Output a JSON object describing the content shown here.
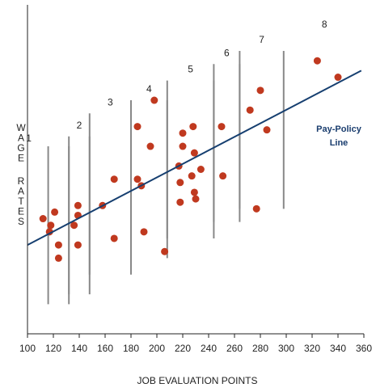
{
  "chart_data": {
    "type": "scatter",
    "xlabel": "JOB EVALUATION POINTS",
    "ylabel": "WAGE RATES",
    "xlim": [
      100,
      360
    ],
    "x_ticks": [
      100,
      120,
      140,
      160,
      180,
      200,
      220,
      240,
      260,
      280,
      300,
      320,
      340,
      360
    ],
    "ylim": [
      0,
      100
    ],
    "colors": {
      "points": "#c0391f",
      "policy_line": "#163f70",
      "grade_bars": "#888888",
      "axes": "#222222"
    },
    "points": [
      {
        "x": 112,
        "y": 35
      },
      {
        "x": 117,
        "y": 31
      },
      {
        "x": 118,
        "y": 33
      },
      {
        "x": 121,
        "y": 37
      },
      {
        "x": 124,
        "y": 27
      },
      {
        "x": 124,
        "y": 23
      },
      {
        "x": 136,
        "y": 33
      },
      {
        "x": 139,
        "y": 39
      },
      {
        "x": 139,
        "y": 36
      },
      {
        "x": 139,
        "y": 27
      },
      {
        "x": 158,
        "y": 39
      },
      {
        "x": 167,
        "y": 47
      },
      {
        "x": 167,
        "y": 29
      },
      {
        "x": 185,
        "y": 47
      },
      {
        "x": 185,
        "y": 63
      },
      {
        "x": 188,
        "y": 45
      },
      {
        "x": 190,
        "y": 31
      },
      {
        "x": 195,
        "y": 57
      },
      {
        "x": 198,
        "y": 71
      },
      {
        "x": 206,
        "y": 25
      },
      {
        "x": 217,
        "y": 51
      },
      {
        "x": 218,
        "y": 46
      },
      {
        "x": 218,
        "y": 40
      },
      {
        "x": 220,
        "y": 61
      },
      {
        "x": 220,
        "y": 57
      },
      {
        "x": 227,
        "y": 48
      },
      {
        "x": 228,
        "y": 63
      },
      {
        "x": 229,
        "y": 55
      },
      {
        "x": 229,
        "y": 43
      },
      {
        "x": 230,
        "y": 41
      },
      {
        "x": 234,
        "y": 50
      },
      {
        "x": 250,
        "y": 63
      },
      {
        "x": 251,
        "y": 48
      },
      {
        "x": 272,
        "y": 68
      },
      {
        "x": 277,
        "y": 38
      },
      {
        "x": 280,
        "y": 74
      },
      {
        "x": 285,
        "y": 62
      },
      {
        "x": 324,
        "y": 83
      },
      {
        "x": 340,
        "y": 78
      }
    ],
    "policy_line": {
      "label_line1": "Pay-Policy",
      "label_line2": "Line",
      "from": {
        "x": 100,
        "y": 27
      },
      "to": {
        "x": 358,
        "y": 80
      }
    },
    "grades": [
      {
        "label": "1",
        "x_start": 116,
        "x_end": 132,
        "y_low": 9,
        "y_high": 57
      },
      {
        "label": "2",
        "x_start": 132,
        "x_end": 148,
        "y_low": 12,
        "y_high": 60
      },
      {
        "label": "3",
        "x_start": 148,
        "x_end": 180,
        "y_low": 18,
        "y_high": 67
      },
      {
        "label": "4",
        "x_start": 180,
        "x_end": 208,
        "y_low": 23,
        "y_high": 71
      },
      {
        "label": "5",
        "x_start": 208,
        "x_end": 244,
        "y_low": 29,
        "y_high": 77
      },
      {
        "label": "6",
        "x_start": 244,
        "x_end": 264,
        "y_low": 34,
        "y_high": 82
      },
      {
        "label": "7",
        "x_start": 264,
        "x_end": 298,
        "y_low": 38,
        "y_high": 86
      },
      {
        "label": "8",
        "x_start": 298,
        "x_end": 356,
        "y_low": 0,
        "y_high": 0
      }
    ]
  }
}
